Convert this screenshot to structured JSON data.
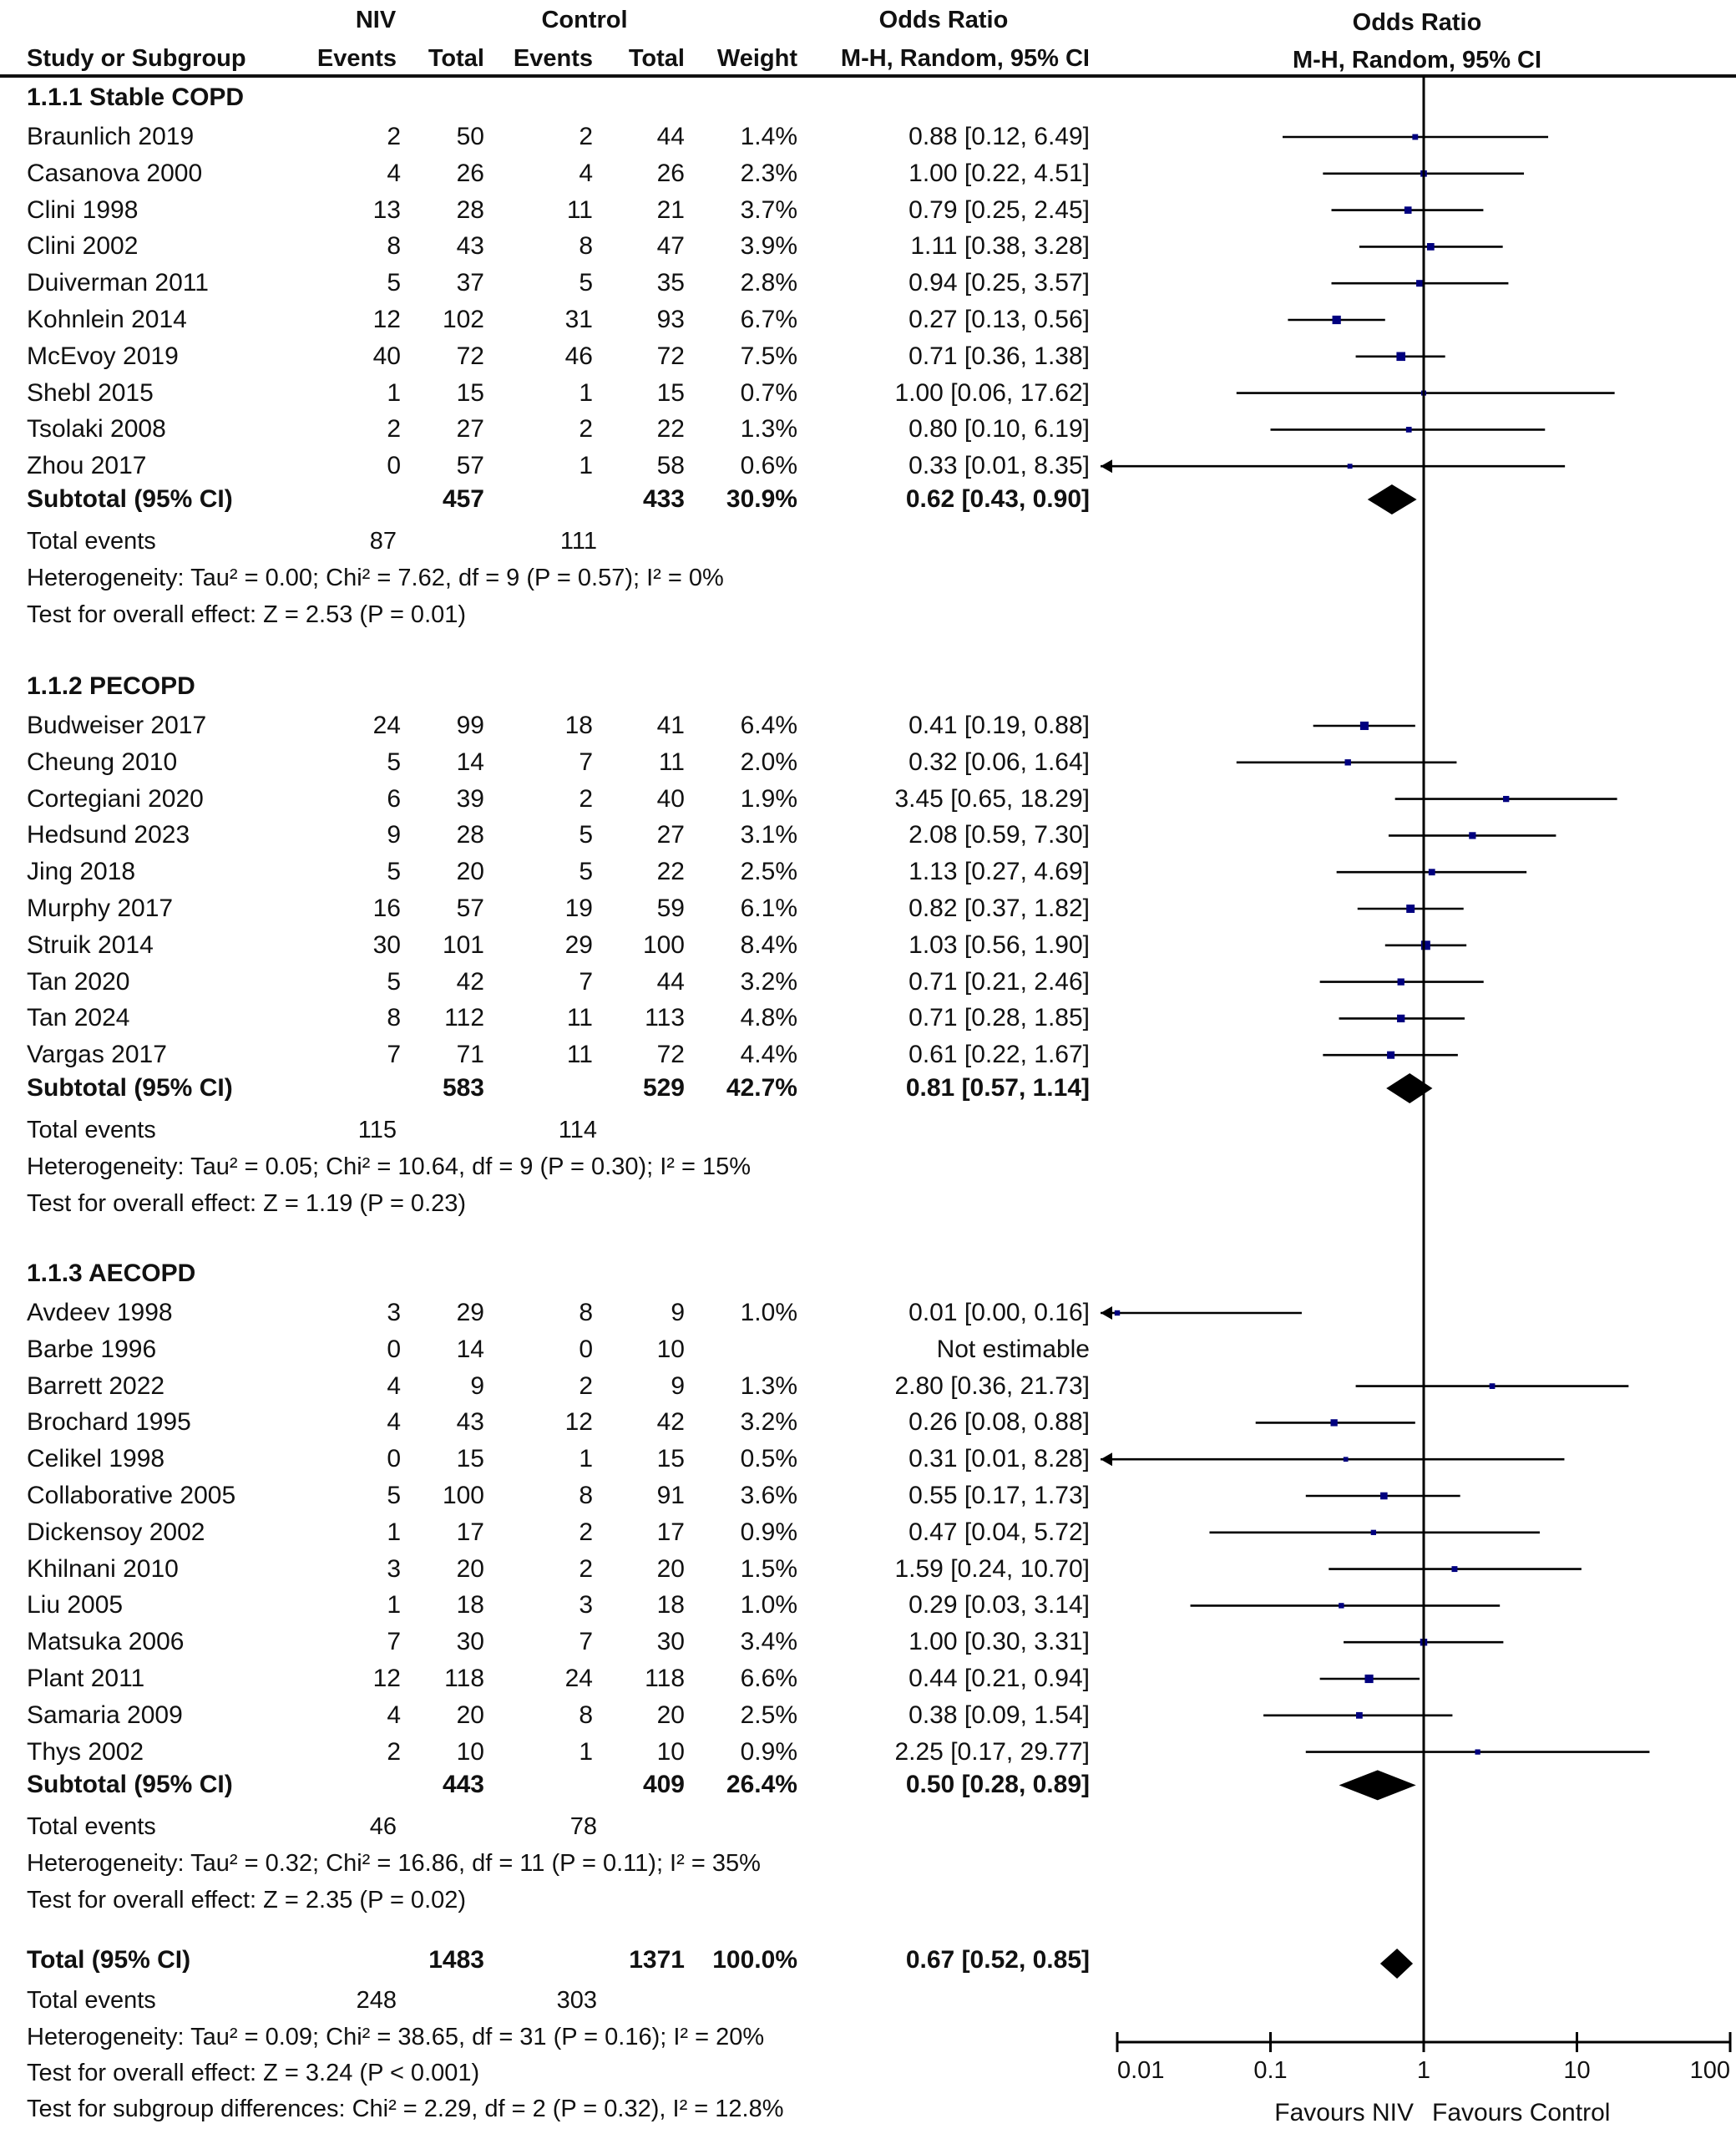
{
  "chart_data": {
    "type": "forest",
    "title": "Odds Ratio",
    "plot_header": {
      "title": "Odds Ratio",
      "method": "M-H, Random, 95% CI"
    },
    "columns": {
      "group_niv": "NIV",
      "group_control": "Control",
      "group_or": "Odds Ratio",
      "study": "Study or Subgroup",
      "niv_events": "Events",
      "niv_total": "Total",
      "control_events": "Events",
      "control_total": "Total",
      "weight": "Weight",
      "or_ci": "M-H, Random, 95% CI"
    },
    "xscale": "log",
    "xlim": [
      0.01,
      100
    ],
    "xticks": [
      "0.01",
      "0.1",
      "1",
      "10",
      "100"
    ],
    "xtick_values": [
      0.01,
      0.1,
      1,
      10,
      100
    ],
    "xlabel_left": "Favours NIV",
    "xlabel_right": "Favours Control",
    "subgroups": [
      {
        "label": "1.1.1 Stable COPD",
        "studies": [
          {
            "study": "Braunlich 2019",
            "ne": "2",
            "nt": "50",
            "ce": "2",
            "ct": "44",
            "weight": "1.4%",
            "or_text": "0.88 [0.12, 6.49]",
            "or": 0.88,
            "lo": 0.12,
            "hi": 6.49,
            "w": 1.4
          },
          {
            "study": "Casanova 2000",
            "ne": "4",
            "nt": "26",
            "ce": "4",
            "ct": "26",
            "weight": "2.3%",
            "or_text": "1.00 [0.22, 4.51]",
            "or": 1.0,
            "lo": 0.22,
            "hi": 4.51,
            "w": 2.3
          },
          {
            "study": "Clini 1998",
            "ne": "13",
            "nt": "28",
            "ce": "11",
            "ct": "21",
            "weight": "3.7%",
            "or_text": "0.79 [0.25, 2.45]",
            "or": 0.79,
            "lo": 0.25,
            "hi": 2.45,
            "w": 3.7
          },
          {
            "study": "Clini 2002",
            "ne": "8",
            "nt": "43",
            "ce": "8",
            "ct": "47",
            "weight": "3.9%",
            "or_text": "1.11 [0.38, 3.28]",
            "or": 1.11,
            "lo": 0.38,
            "hi": 3.28,
            "w": 3.9
          },
          {
            "study": "Duiverman 2011",
            "ne": "5",
            "nt": "37",
            "ce": "5",
            "ct": "35",
            "weight": "2.8%",
            "or_text": "0.94 [0.25, 3.57]",
            "or": 0.94,
            "lo": 0.25,
            "hi": 3.57,
            "w": 2.8
          },
          {
            "study": "Kohnlein 2014",
            "ne": "12",
            "nt": "102",
            "ce": "31",
            "ct": "93",
            "weight": "6.7%",
            "or_text": "0.27 [0.13, 0.56]",
            "or": 0.27,
            "lo": 0.13,
            "hi": 0.56,
            "w": 6.7
          },
          {
            "study": "McEvoy 2019",
            "ne": "40",
            "nt": "72",
            "ce": "46",
            "ct": "72",
            "weight": "7.5%",
            "or_text": "0.71 [0.36, 1.38]",
            "or": 0.71,
            "lo": 0.36,
            "hi": 1.38,
            "w": 7.5
          },
          {
            "study": "Shebl 2015",
            "ne": "1",
            "nt": "15",
            "ce": "1",
            "ct": "15",
            "weight": "0.7%",
            "or_text": "1.00 [0.06, 17.62]",
            "or": 1.0,
            "lo": 0.06,
            "hi": 17.62,
            "w": 0.7
          },
          {
            "study": "Tsolaki 2008",
            "ne": "2",
            "nt": "27",
            "ce": "2",
            "ct": "22",
            "weight": "1.3%",
            "or_text": "0.80 [0.10, 6.19]",
            "or": 0.8,
            "lo": 0.1,
            "hi": 6.19,
            "w": 1.3
          },
          {
            "study": "Zhou 2017",
            "ne": "0",
            "nt": "57",
            "ce": "1",
            "ct": "58",
            "weight": "0.6%",
            "or_text": "0.33 [0.01, 8.35]",
            "or": 0.33,
            "lo": 0.01,
            "hi": 8.35,
            "w": 0.6
          }
        ],
        "subtotal": {
          "label": "Subtotal (95% CI)",
          "nt": "457",
          "ct": "433",
          "weight": "30.9%",
          "or_text": "0.62 [0.43, 0.90]",
          "or": 0.62,
          "lo": 0.43,
          "hi": 0.9
        },
        "total_events": {
          "label": "Total events",
          "niv": "87",
          "control": "111"
        },
        "heterogeneity": "Heterogeneity: Tau² = 0.00; Chi² = 7.62, df = 9 (P = 0.57); I² = 0%",
        "overall_effect": "Test for overall effect: Z = 2.53 (P = 0.01)"
      },
      {
        "label": "1.1.2 PECOPD",
        "studies": [
          {
            "study": "Budweiser 2017",
            "ne": "24",
            "nt": "99",
            "ce": "18",
            "ct": "41",
            "weight": "6.4%",
            "or_text": "0.41 [0.19, 0.88]",
            "or": 0.41,
            "lo": 0.19,
            "hi": 0.88,
            "w": 6.4
          },
          {
            "study": "Cheung 2010",
            "ne": "5",
            "nt": "14",
            "ce": "7",
            "ct": "11",
            "weight": "2.0%",
            "or_text": "0.32 [0.06, 1.64]",
            "or": 0.32,
            "lo": 0.06,
            "hi": 1.64,
            "w": 2.0
          },
          {
            "study": "Cortegiani 2020",
            "ne": "6",
            "nt": "39",
            "ce": "2",
            "ct": "40",
            "weight": "1.9%",
            "or_text": "3.45 [0.65, 18.29]",
            "or": 3.45,
            "lo": 0.65,
            "hi": 18.29,
            "w": 1.9
          },
          {
            "study": "Hedsund 2023",
            "ne": "9",
            "nt": "28",
            "ce": "5",
            "ct": "27",
            "weight": "3.1%",
            "or_text": "2.08 [0.59, 7.30]",
            "or": 2.08,
            "lo": 0.59,
            "hi": 7.3,
            "w": 3.1
          },
          {
            "study": "Jing 2018",
            "ne": "5",
            "nt": "20",
            "ce": "5",
            "ct": "22",
            "weight": "2.5%",
            "or_text": "1.13 [0.27, 4.69]",
            "or": 1.13,
            "lo": 0.27,
            "hi": 4.69,
            "w": 2.5
          },
          {
            "study": "Murphy 2017",
            "ne": "16",
            "nt": "57",
            "ce": "19",
            "ct": "59",
            "weight": "6.1%",
            "or_text": "0.82 [0.37, 1.82]",
            "or": 0.82,
            "lo": 0.37,
            "hi": 1.82,
            "w": 6.1
          },
          {
            "study": "Struik 2014",
            "ne": "30",
            "nt": "101",
            "ce": "29",
            "ct": "100",
            "weight": "8.4%",
            "or_text": "1.03 [0.56, 1.90]",
            "or": 1.03,
            "lo": 0.56,
            "hi": 1.9,
            "w": 8.4
          },
          {
            "study": "Tan 2020",
            "ne": "5",
            "nt": "42",
            "ce": "7",
            "ct": "44",
            "weight": "3.2%",
            "or_text": "0.71 [0.21, 2.46]",
            "or": 0.71,
            "lo": 0.21,
            "hi": 2.46,
            "w": 3.2
          },
          {
            "study": "Tan 2024",
            "ne": "8",
            "nt": "112",
            "ce": "11",
            "ct": "113",
            "weight": "4.8%",
            "or_text": "0.71 [0.28, 1.85]",
            "or": 0.71,
            "lo": 0.28,
            "hi": 1.85,
            "w": 4.8
          },
          {
            "study": "Vargas 2017",
            "ne": "7",
            "nt": "71",
            "ce": "11",
            "ct": "72",
            "weight": "4.4%",
            "or_text": "0.61 [0.22, 1.67]",
            "or": 0.61,
            "lo": 0.22,
            "hi": 1.67,
            "w": 4.4
          }
        ],
        "subtotal": {
          "label": "Subtotal (95% CI)",
          "nt": "583",
          "ct": "529",
          "weight": "42.7%",
          "or_text": "0.81 [0.57, 1.14]",
          "or": 0.81,
          "lo": 0.57,
          "hi": 1.14
        },
        "total_events": {
          "label": "Total events",
          "niv": "115",
          "control": "114"
        },
        "heterogeneity": "Heterogeneity: Tau² = 0.05; Chi² = 10.64, df = 9 (P = 0.30); I² = 15%",
        "overall_effect": "Test for overall effect: Z = 1.19 (P = 0.23)"
      },
      {
        "label": "1.1.3 AECOPD",
        "studies": [
          {
            "study": "Avdeev 1998",
            "ne": "3",
            "nt": "29",
            "ce": "8",
            "ct": "9",
            "weight": "1.0%",
            "or_text": "0.01 [0.00, 0.16]",
            "or": 0.01,
            "lo": 0.0,
            "hi": 0.16,
            "w": 1.0
          },
          {
            "study": "Barbe 1996",
            "ne": "0",
            "nt": "14",
            "ce": "0",
            "ct": "10",
            "weight": "",
            "or_text": "Not estimable",
            "or": null,
            "lo": null,
            "hi": null,
            "w": 0
          },
          {
            "study": "Barrett 2022",
            "ne": "4",
            "nt": "9",
            "ce": "2",
            "ct": "9",
            "weight": "1.3%",
            "or_text": "2.80 [0.36, 21.73]",
            "or": 2.8,
            "lo": 0.36,
            "hi": 21.73,
            "w": 1.3
          },
          {
            "study": "Brochard 1995",
            "ne": "4",
            "nt": "43",
            "ce": "12",
            "ct": "42",
            "weight": "3.2%",
            "or_text": "0.26 [0.08, 0.88]",
            "or": 0.26,
            "lo": 0.08,
            "hi": 0.88,
            "w": 3.2
          },
          {
            "study": "Celikel 1998",
            "ne": "0",
            "nt": "15",
            "ce": "1",
            "ct": "15",
            "weight": "0.5%",
            "or_text": "0.31 [0.01, 8.28]",
            "or": 0.31,
            "lo": 0.01,
            "hi": 8.28,
            "w": 0.5
          },
          {
            "study": "Collaborative 2005",
            "ne": "5",
            "nt": "100",
            "ce": "8",
            "ct": "91",
            "weight": "3.6%",
            "or_text": "0.55 [0.17, 1.73]",
            "or": 0.55,
            "lo": 0.17,
            "hi": 1.73,
            "w": 3.6
          },
          {
            "study": "Dickensoy 2002",
            "ne": "1",
            "nt": "17",
            "ce": "2",
            "ct": "17",
            "weight": "0.9%",
            "or_text": "0.47 [0.04, 5.72]",
            "or": 0.47,
            "lo": 0.04,
            "hi": 5.72,
            "w": 0.9
          },
          {
            "study": "Khilnani 2010",
            "ne": "3",
            "nt": "20",
            "ce": "2",
            "ct": "20",
            "weight": "1.5%",
            "or_text": "1.59 [0.24, 10.70]",
            "or": 1.59,
            "lo": 0.24,
            "hi": 10.7,
            "w": 1.5
          },
          {
            "study": "Liu 2005",
            "ne": "1",
            "nt": "18",
            "ce": "3",
            "ct": "18",
            "weight": "1.0%",
            "or_text": "0.29 [0.03, 3.14]",
            "or": 0.29,
            "lo": 0.03,
            "hi": 3.14,
            "w": 1.0
          },
          {
            "study": "Matsuka 2006",
            "ne": "7",
            "nt": "30",
            "ce": "7",
            "ct": "30",
            "weight": "3.4%",
            "or_text": "1.00 [0.30, 3.31]",
            "or": 1.0,
            "lo": 0.3,
            "hi": 3.31,
            "w": 3.4
          },
          {
            "study": "Plant 2011",
            "ne": "12",
            "nt": "118",
            "ce": "24",
            "ct": "118",
            "weight": "6.6%",
            "or_text": "0.44 [0.21, 0.94]",
            "or": 0.44,
            "lo": 0.21,
            "hi": 0.94,
            "w": 6.6
          },
          {
            "study": "Samaria 2009",
            "ne": "4",
            "nt": "20",
            "ce": "8",
            "ct": "20",
            "weight": "2.5%",
            "or_text": "0.38 [0.09, 1.54]",
            "or": 0.38,
            "lo": 0.09,
            "hi": 1.54,
            "w": 2.5
          },
          {
            "study": "Thys 2002",
            "ne": "2",
            "nt": "10",
            "ce": "1",
            "ct": "10",
            "weight": "0.9%",
            "or_text": "2.25 [0.17, 29.77]",
            "or": 2.25,
            "lo": 0.17,
            "hi": 29.77,
            "w": 0.9
          }
        ],
        "subtotal": {
          "label": "Subtotal (95% CI)",
          "nt": "443",
          "ct": "409",
          "weight": "26.4%",
          "or_text": "0.50 [0.28, 0.89]",
          "or": 0.5,
          "lo": 0.28,
          "hi": 0.89
        },
        "total_events": {
          "label": "Total events",
          "niv": "46",
          "control": "78"
        },
        "heterogeneity": "Heterogeneity: Tau² = 0.32; Chi² = 16.86, df = 11 (P = 0.11); I² = 35%",
        "overall_effect": "Test for overall effect: Z = 2.35 (P = 0.02)"
      }
    ],
    "total": {
      "label": "Total (95% CI)",
      "nt": "1483",
      "ct": "1371",
      "weight": "100.0%",
      "or_text": "0.67 [0.52, 0.85]",
      "or": 0.67,
      "lo": 0.52,
      "hi": 0.85
    },
    "total_events": {
      "label": "Total events",
      "niv": "248",
      "control": "303"
    },
    "heterogeneity": "Heterogeneity: Tau² = 0.09; Chi² = 38.65, df = 31 (P = 0.16); I² = 20%",
    "overall_effect": "Test for overall effect: Z = 3.24 (P < 0.001)",
    "subgroup_differences": "Test for subgroup differences: Chi² = 2.29, df = 2 (P = 0.32), I² = 12.8%",
    "colors": {
      "marker": "#00007f",
      "line": "#000000",
      "diamond": "#000000"
    }
  }
}
